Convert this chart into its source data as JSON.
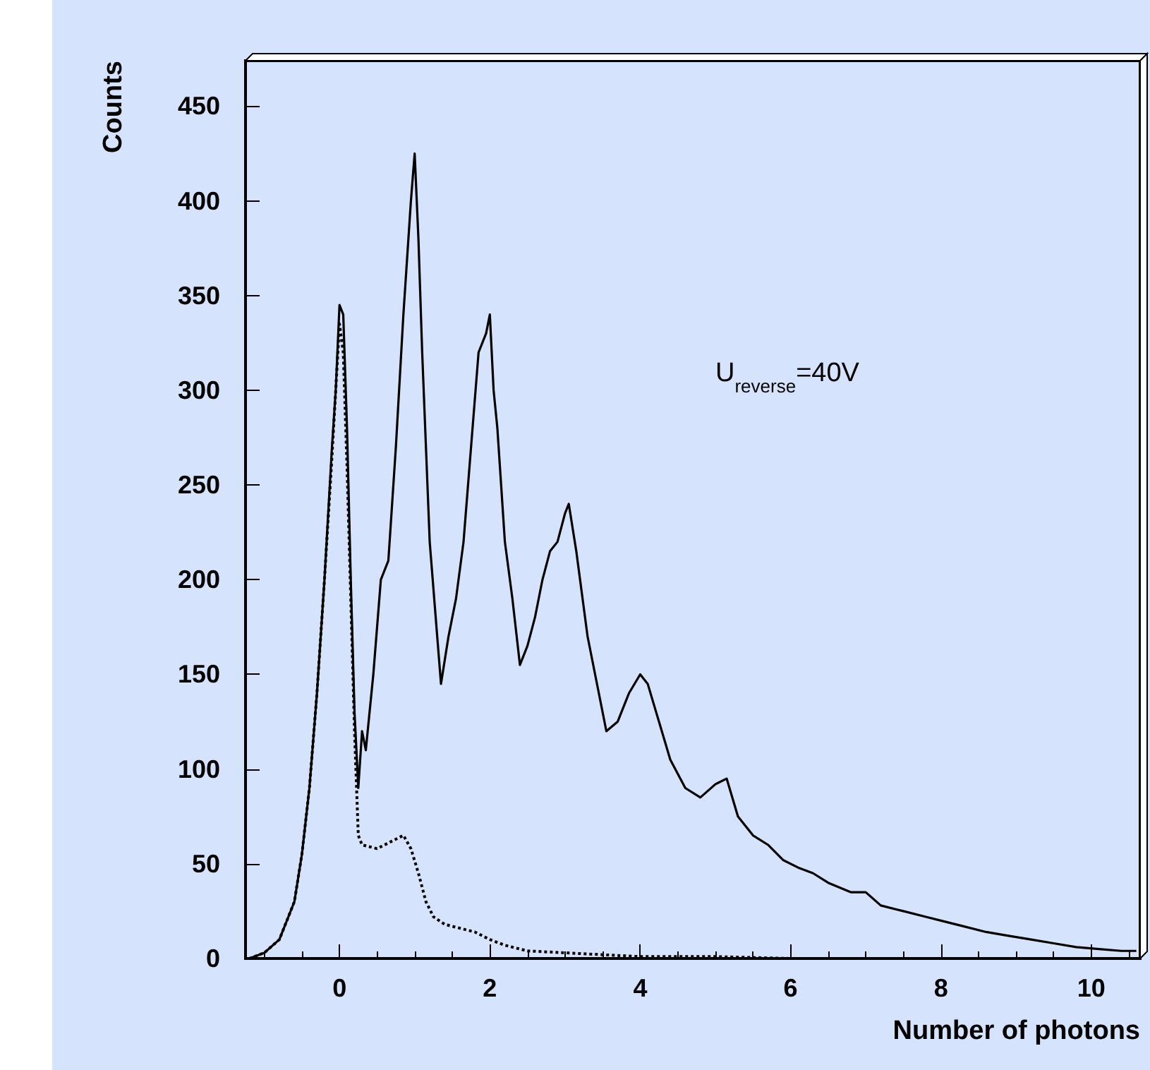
{
  "chart_data": {
    "type": "line",
    "xlabel": "Number of photons",
    "ylabel": "Counts",
    "annotations": [
      "U$_{reverse}$=40V"
    ],
    "xlim": [
      -1.25,
      10.65
    ],
    "xticks": [
      0,
      2,
      4,
      6,
      8,
      10
    ],
    "ylim": [
      0,
      474
    ],
    "yticks": [
      0,
      50,
      100,
      150,
      200,
      250,
      300,
      350,
      400,
      450
    ],
    "grid": false,
    "marker": "none",
    "series": [
      {
        "color": "#000000",
        "line_style": "solid",
        "x": [
          -1.2,
          -1.0,
          -0.8,
          -0.6,
          -0.5,
          -0.4,
          -0.3,
          -0.2,
          -0.1,
          -0.05,
          0,
          0.05,
          0.1,
          0.15,
          0.2,
          0.25,
          0.3,
          0.35,
          0.45,
          0.55,
          0.65,
          0.75,
          0.85,
          0.95,
          1.0,
          1.05,
          1.1,
          1.2,
          1.3,
          1.35,
          1.45,
          1.55,
          1.65,
          1.75,
          1.85,
          1.95,
          2.0,
          2.05,
          2.1,
          2.2,
          2.3,
          2.4,
          2.5,
          2.6,
          2.7,
          2.8,
          2.9,
          3.0,
          3.05,
          3.15,
          3.3,
          3.45,
          3.55,
          3.7,
          3.85,
          4.0,
          4.1,
          4.25,
          4.4,
          4.6,
          4.8,
          5.0,
          5.15,
          5.3,
          5.5,
          5.7,
          5.9,
          6.1,
          6.3,
          6.5,
          6.8,
          7.0,
          7.2,
          7.5,
          7.8,
          8.0,
          8.3,
          8.6,
          8.9,
          9.2,
          9.5,
          9.8,
          10.1,
          10.4,
          10.6
        ],
        "values": [
          0,
          3,
          10,
          30,
          55,
          90,
          140,
          200,
          270,
          300,
          345,
          340,
          280,
          200,
          130,
          90,
          120,
          110,
          150,
          200,
          210,
          270,
          340,
          400,
          425,
          380,
          320,
          220,
          170,
          145,
          170,
          190,
          220,
          270,
          320,
          330,
          340,
          300,
          280,
          220,
          190,
          155,
          165,
          180,
          200,
          215,
          220,
          235,
          240,
          215,
          170,
          140,
          120,
          125,
          140,
          150,
          145,
          125,
          105,
          90,
          85,
          92,
          95,
          75,
          65,
          60,
          52,
          48,
          45,
          40,
          35,
          35,
          28,
          25,
          22,
          20,
          17,
          14,
          12,
          10,
          8,
          6,
          5,
          4,
          4
        ]
      },
      {
        "color": "#000000",
        "line_style": "dotted",
        "x": [
          -1.2,
          -1.0,
          -0.8,
          -0.6,
          -0.5,
          -0.4,
          -0.3,
          -0.2,
          -0.1,
          -0.05,
          0,
          0.05,
          0.1,
          0.2,
          0.25,
          0.3,
          0.5,
          0.7,
          0.85,
          0.95,
          1.05,
          1.15,
          1.25,
          1.4,
          1.6,
          1.8,
          2.0,
          2.2,
          2.5,
          3.0,
          3.5,
          4.0,
          5.0,
          6.0,
          8.0,
          10.6
        ],
        "values": [
          0,
          3,
          10,
          30,
          55,
          90,
          140,
          200,
          265,
          300,
          335,
          320,
          260,
          120,
          65,
          60,
          58,
          62,
          65,
          58,
          45,
          30,
          22,
          18,
          16,
          14,
          10,
          7,
          4,
          3,
          2,
          1,
          1,
          0,
          0,
          0
        ]
      }
    ]
  }
}
